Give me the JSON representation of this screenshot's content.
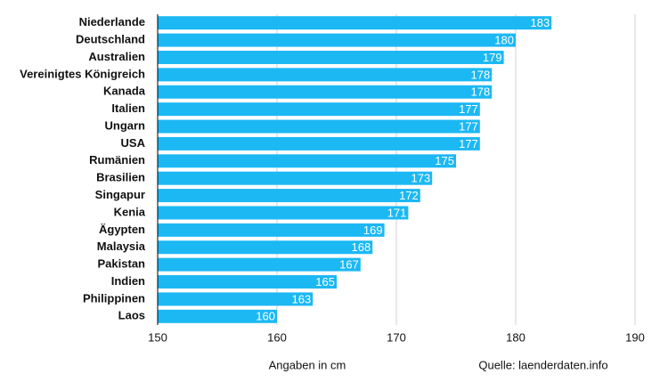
{
  "chart_data": {
    "type": "bar",
    "orientation": "horizontal",
    "categories": [
      "Niederlande",
      "Deutschland",
      "Australien",
      "Vereinigtes Königreich",
      "Kanada",
      "Italien",
      "Ungarn",
      "USA",
      "Rumänien",
      "Brasilien",
      "Singapur",
      "Kenia",
      "Ägypten",
      "Malaysia",
      "Pakistan",
      "Indien",
      "Philippinen",
      "Laos"
    ],
    "values": [
      183,
      180,
      179,
      178,
      178,
      177,
      177,
      177,
      175,
      173,
      172,
      171,
      169,
      168,
      167,
      165,
      163,
      160
    ],
    "color": "#1cb8f4",
    "xlim": [
      150,
      190
    ],
    "xticks": [
      150,
      160,
      170,
      180,
      190
    ],
    "grid": true,
    "annotations": [
      "Angaben in cm",
      "Quelle: laenderdaten.info"
    ]
  }
}
